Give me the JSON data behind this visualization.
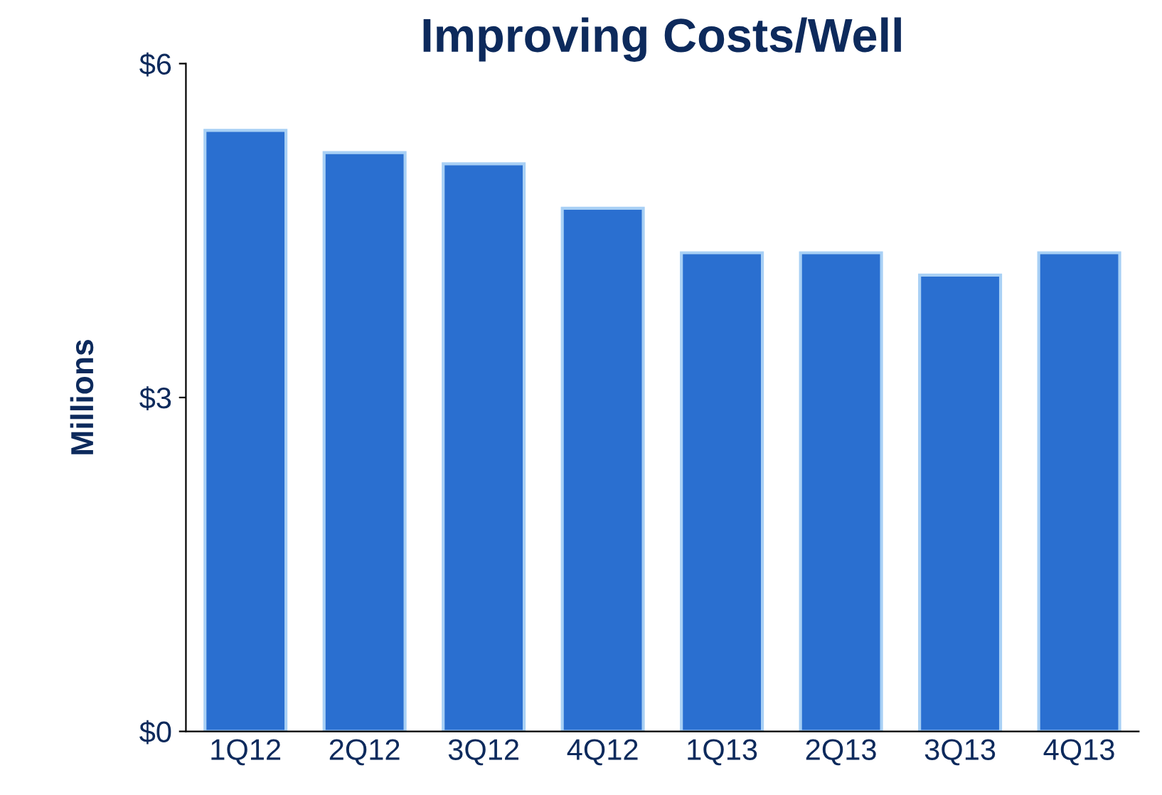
{
  "chart_data": {
    "type": "bar",
    "title": "Improving Costs/Well",
    "ylabel": "Millions",
    "categories": [
      "1Q12",
      "2Q12",
      "3Q12",
      "4Q12",
      "1Q13",
      "2Q13",
      "3Q13",
      "4Q13"
    ],
    "values": [
      5.4,
      5.2,
      5.1,
      4.7,
      4.3,
      4.3,
      4.1,
      4.3
    ],
    "color": "#2a6fd0",
    "ylim": [
      0,
      6
    ],
    "yticks": [
      {
        "value": 0,
        "label": "$0"
      },
      {
        "value": 3,
        "label": "$3"
      },
      {
        "value": 6,
        "label": "$6"
      }
    ],
    "grid": false
  }
}
